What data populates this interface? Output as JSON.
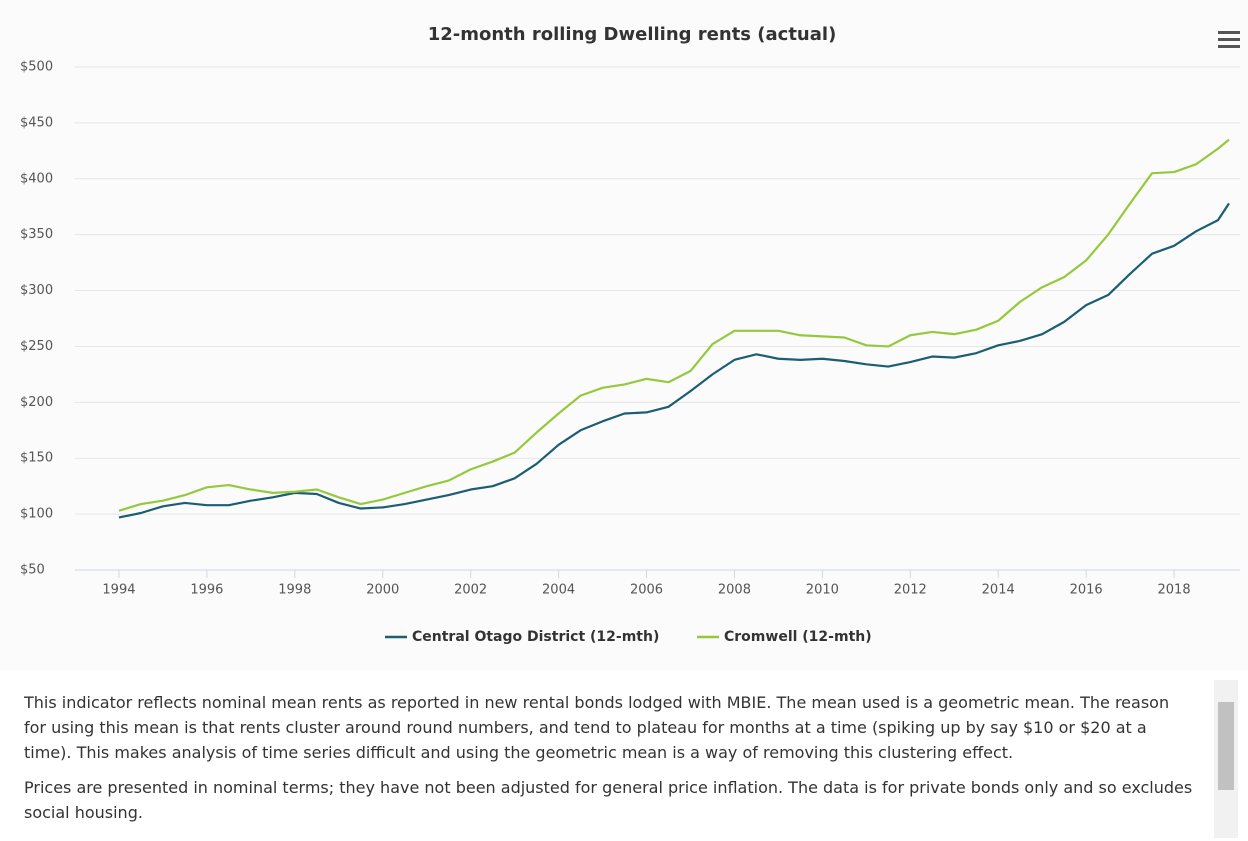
{
  "chart_data": {
    "type": "line",
    "title": "12-month rolling Dwelling rents (actual)",
    "x": [
      1994,
      1994.5,
      1995,
      1995.5,
      1996,
      1996.5,
      1997,
      1997.5,
      1998,
      1998.5,
      1999,
      1999.5,
      2000,
      2000.5,
      2001,
      2001.5,
      2002,
      2002.5,
      2003,
      2003.5,
      2004,
      2004.5,
      2005,
      2005.5,
      2006,
      2006.5,
      2007,
      2007.5,
      2008,
      2008.5,
      2009,
      2009.5,
      2010,
      2010.5,
      2011,
      2011.5,
      2012,
      2012.5,
      2013,
      2013.5,
      2014,
      2014.5,
      2015,
      2015.5,
      2016,
      2016.5,
      2017,
      2017.5,
      2018,
      2018.5,
      2019,
      2019.25
    ],
    "series": [
      {
        "name": "Central Otago District (12-mth)",
        "color": "#1b5e73",
        "values": [
          97,
          101,
          107,
          110,
          108,
          108,
          112,
          115,
          119,
          118,
          110,
          105,
          106,
          109,
          113,
          117,
          122,
          125,
          132,
          145,
          162,
          175,
          183,
          190,
          191,
          196,
          210,
          225,
          238,
          243,
          239,
          238,
          239,
          237,
          234,
          232,
          236,
          241,
          240,
          244,
          251,
          255,
          261,
          272,
          287,
          296,
          315,
          333,
          340,
          353,
          363,
          378
        ]
      },
      {
        "name": "Cromwell (12-mth)",
        "color": "#95c93d",
        "values": [
          103,
          109,
          112,
          117,
          124,
          126,
          122,
          119,
          120,
          122,
          115,
          109,
          113,
          119,
          125,
          130,
          140,
          147,
          155,
          173,
          190,
          206,
          213,
          216,
          221,
          218,
          228,
          252,
          264,
          264,
          264,
          260,
          259,
          258,
          251,
          250,
          260,
          263,
          261,
          265,
          273,
          290,
          303,
          312,
          327,
          350,
          378,
          405,
          406,
          413,
          427,
          435
        ]
      }
    ],
    "xlim": [
      1993,
      2019.5
    ],
    "xticks": [
      1994,
      1996,
      1998,
      2000,
      2002,
      2004,
      2006,
      2008,
      2010,
      2012,
      2014,
      2016,
      2018
    ],
    "ylim": [
      50,
      500
    ],
    "yticks": [
      {
        "value": 50,
        "label": "$50"
      },
      {
        "value": 100,
        "label": "$100"
      },
      {
        "value": 150,
        "label": "$150"
      },
      {
        "value": 200,
        "label": "$200"
      },
      {
        "value": 250,
        "label": "$250"
      },
      {
        "value": 300,
        "label": "$300"
      },
      {
        "value": 350,
        "label": "$350"
      },
      {
        "value": 400,
        "label": "$400"
      },
      {
        "value": 450,
        "label": "$450"
      },
      {
        "value": 500,
        "label": "$500"
      }
    ],
    "grid": true,
    "legend": "bottom"
  },
  "description": {
    "paragraphs": [
      "This indicator reflects nominal mean rents as reported in new rental bonds lodged with MBIE. The mean used is a geometric mean. The reason for using this mean is that rents cluster around round numbers, and tend to plateau for months at a time (spiking up by say $10 or $20 at a time). This makes analysis of time series difficult and using the geometric mean is a way of removing this clustering effect.",
      "Prices are presented in nominal terms; they have not been adjusted for general price inflation. The data is for private bonds only and so excludes social housing."
    ]
  }
}
